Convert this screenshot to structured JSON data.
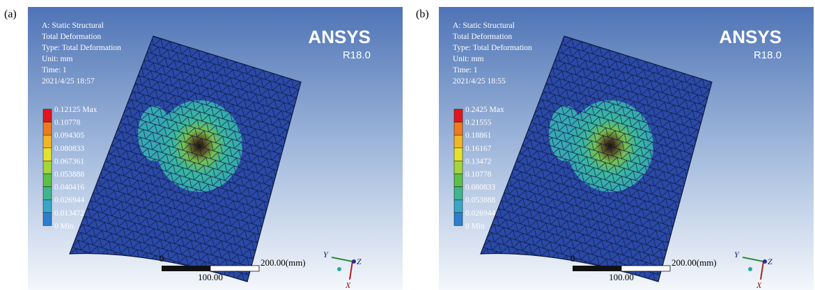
{
  "panels": [
    {
      "label": "(a)",
      "header": [
        "A: Static Structural",
        "Total Deformation",
        "Type: Total Deformation",
        "Unit: mm",
        "Time: 1",
        "2021/4/25 18:57"
      ],
      "logo": "ANSYS",
      "version": "R18.0",
      "legend": [
        "0.12125 Max",
        "0.10778",
        "0.094305",
        "0.080833",
        "0.067361",
        "0.053888",
        "0.040416",
        "0.026944",
        "0.013472",
        "0 Min"
      ],
      "scale": {
        "start": "0",
        "mid": "100.00",
        "end": "200.00(mm)"
      },
      "axes": {
        "x": "X",
        "y": "Y",
        "z": "Z"
      }
    },
    {
      "label": "(b)",
      "header": [
        "A: Static Structural",
        "Total Deformation",
        "Type: Total Deformation",
        "Unit: mm",
        "Time: 1",
        "2021/4/25 18:55"
      ],
      "logo": "ANSYS",
      "version": "R18.0",
      "legend": [
        "0.2425 Max",
        "0.21555",
        "0.18861",
        "0.16167",
        "0.13472",
        "0.10778",
        "0.080833",
        "0.053888",
        "0.026944",
        "0 Min"
      ],
      "scale": {
        "start": "0",
        "mid": "100.00",
        "end": "200.00(mm)"
      },
      "axes": {
        "x": "X",
        "y": "Y",
        "z": "Z"
      }
    }
  ]
}
